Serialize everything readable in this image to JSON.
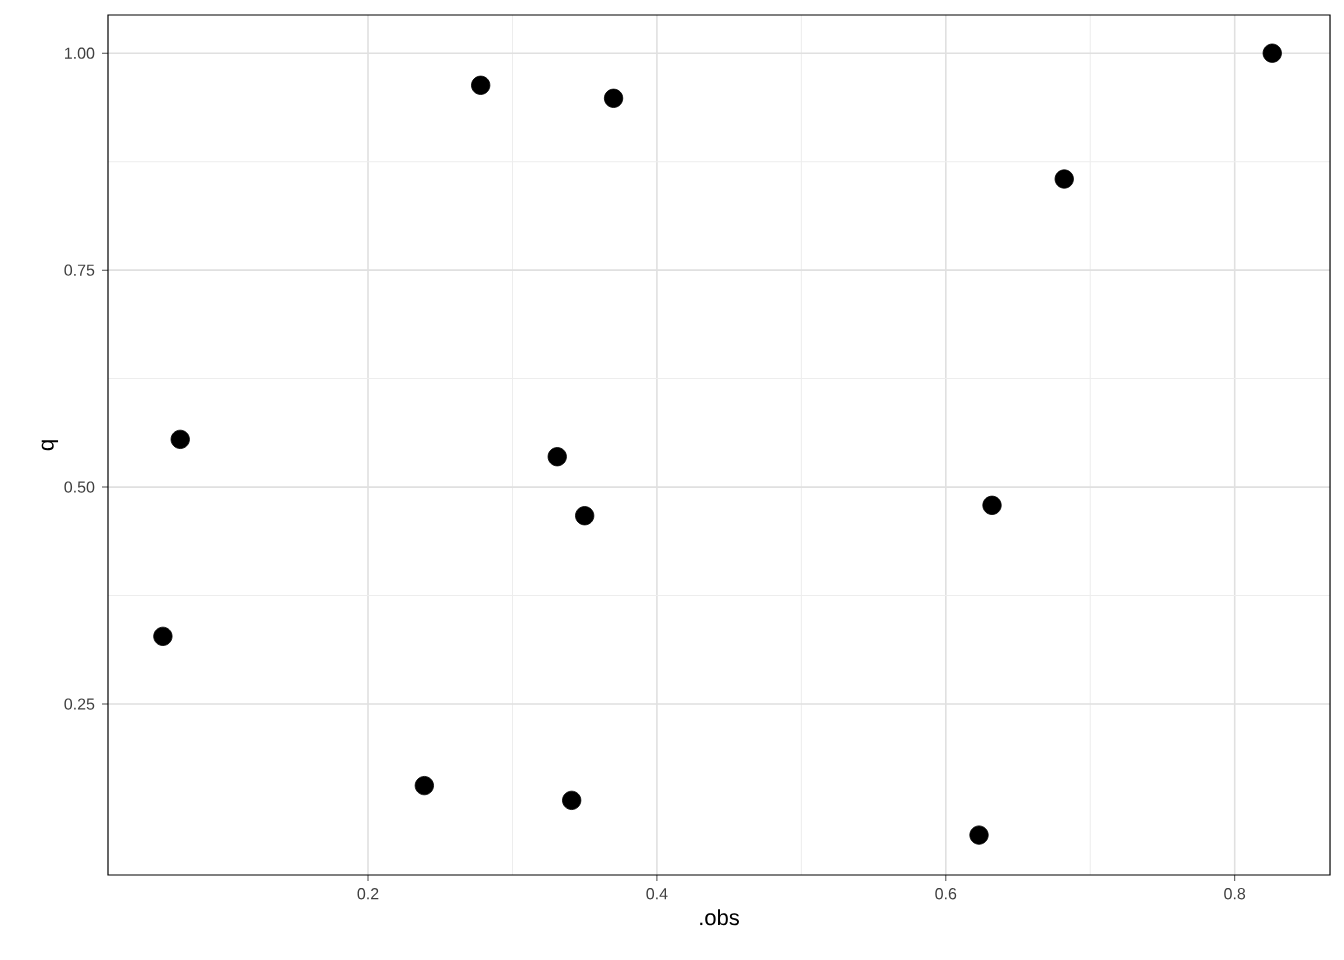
{
  "chart_data": {
    "type": "scatter",
    "xlabel": ".obs",
    "ylabel": "q",
    "x": [
      0.058,
      0.07,
      0.239,
      0.278,
      0.331,
      0.341,
      0.35,
      0.37,
      0.623,
      0.632,
      0.682,
      0.826
    ],
    "values": [
      0.328,
      0.555,
      0.156,
      0.963,
      0.535,
      0.139,
      0.467,
      0.948,
      0.099,
      0.479,
      0.855,
      1.0
    ],
    "color": "#000000",
    "marker": "circle",
    "xlim": [
      0.02,
      0.866
    ],
    "ylim": [
      0.053,
      1.044
    ],
    "xticks": [
      0.2,
      0.4,
      0.6,
      0.8
    ],
    "yticks": [
      {
        "value": 0.25,
        "label": "0.25"
      },
      {
        "value": 0.5,
        "label": "0.50"
      },
      {
        "value": 0.75,
        "label": "0.75"
      },
      {
        "value": 1.0,
        "label": "1.00"
      }
    ],
    "grid": true
  }
}
